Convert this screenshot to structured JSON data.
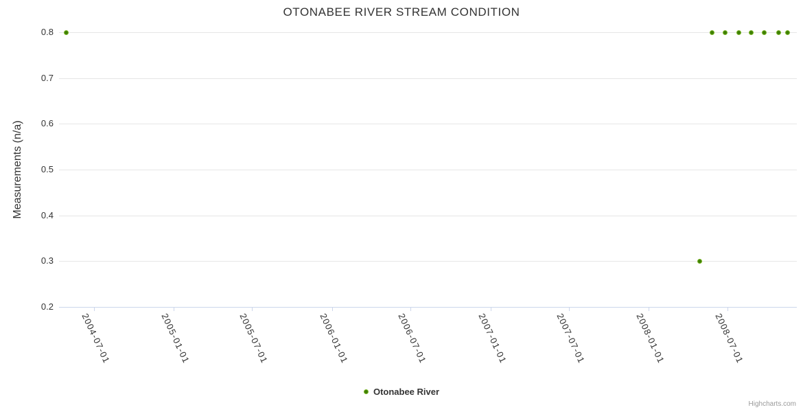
{
  "chart_data": {
    "type": "scatter",
    "title": "OTONABEE RIVER STREAM CONDITION",
    "xlabel": "",
    "ylabel": "Measurements (n/a)",
    "ylim": [
      0.2,
      0.8
    ],
    "y_ticks": [
      0.2,
      0.3,
      0.4,
      0.5,
      0.6,
      0.7,
      0.8
    ],
    "x_range": [
      "2004-04-12",
      "2008-12-07"
    ],
    "x_ticks": [
      "2004-07-01",
      "2005-01-01",
      "2005-07-01",
      "2006-01-01",
      "2006-07-01",
      "2007-01-01",
      "2007-07-01",
      "2008-01-01",
      "2008-07-01"
    ],
    "grid": "horizontal",
    "legend_position": "bottom-center",
    "series": [
      {
        "name": "Otonabee River",
        "points": [
          {
            "x": "2004-04-29",
            "y": 0.8
          },
          {
            "x": "2008-04-28",
            "y": 0.3
          },
          {
            "x": "2008-05-26",
            "y": 0.8
          },
          {
            "x": "2008-06-25",
            "y": 0.8
          },
          {
            "x": "2008-07-27",
            "y": 0.8
          },
          {
            "x": "2008-08-24",
            "y": 0.8
          },
          {
            "x": "2008-09-23",
            "y": 0.8
          },
          {
            "x": "2008-10-26",
            "y": 0.8
          },
          {
            "x": "2008-11-16",
            "y": 0.8
          }
        ]
      }
    ]
  },
  "legend": {
    "items": [
      {
        "label": "Otonabee River"
      }
    ]
  },
  "credits": {
    "label": "Highcharts.com"
  },
  "colors": {
    "background": "#ffffff",
    "grid": "#e6e6e6",
    "axis_line": "#ccd6eb",
    "tick": "#ccd6eb",
    "text": "#333333",
    "credits_text": "#999999",
    "marker_center": "#3e7f04",
    "marker_edge": "#94ce35"
  }
}
